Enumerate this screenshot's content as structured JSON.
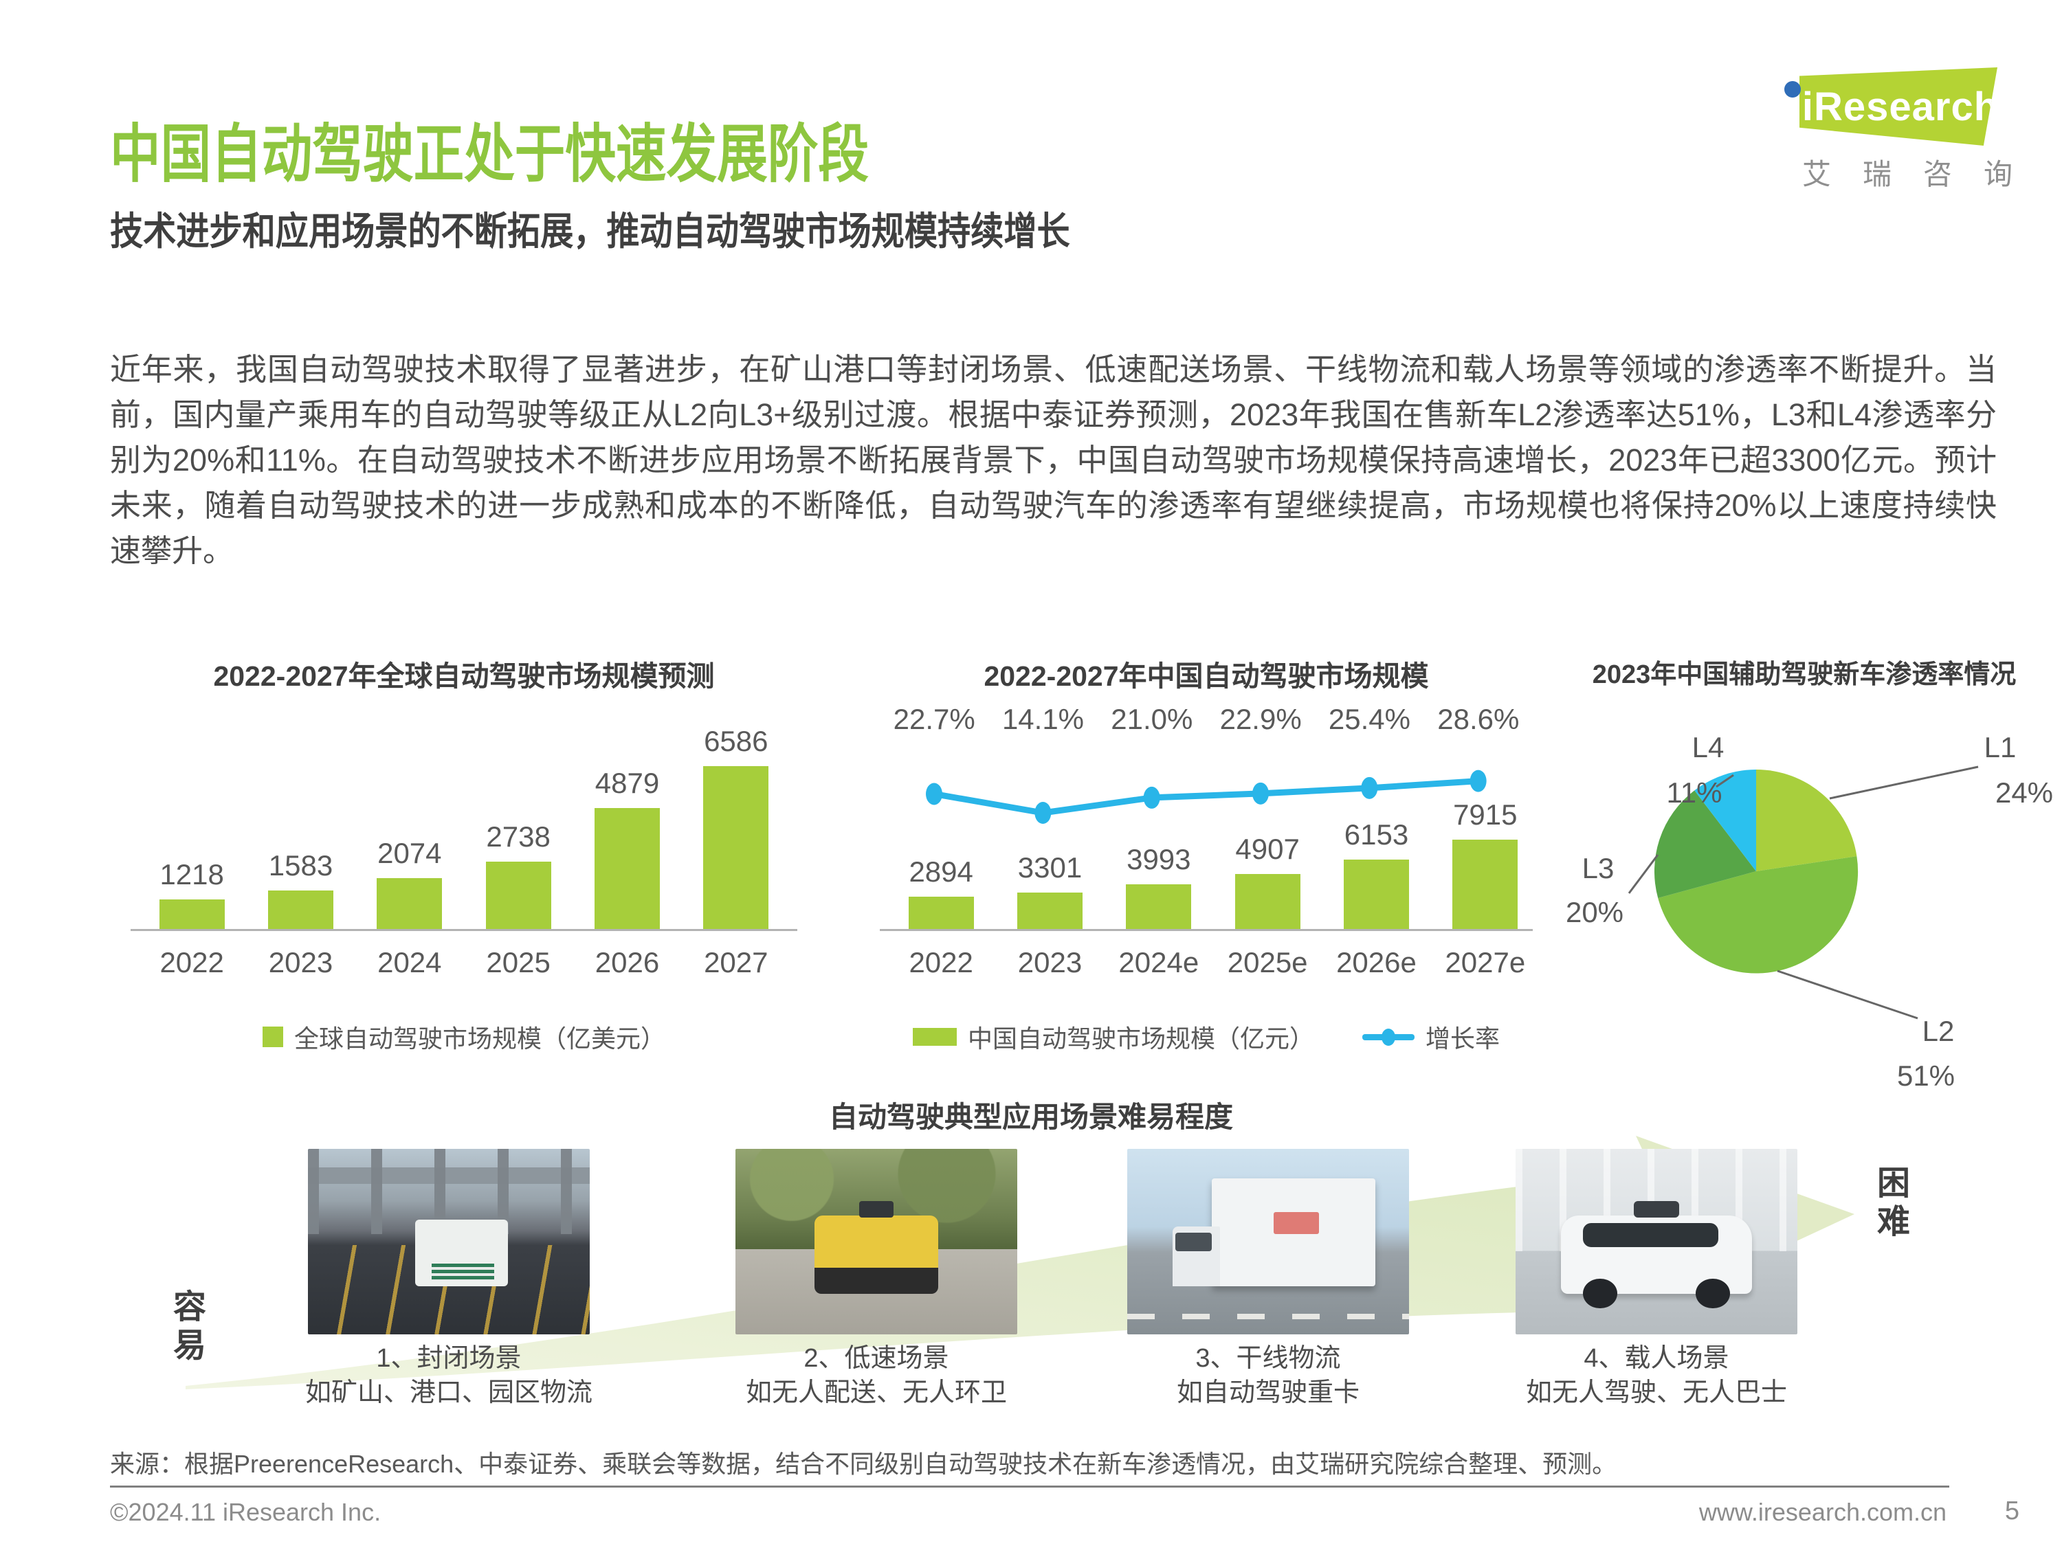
{
  "page": {
    "title": "中国自动驾驶正处于快速发展阶段",
    "subtitle": "技术进步和应用场景的不断拓展，推动自动驾驶市场规模持续增长",
    "body": "近年来，我国自动驾驶技术取得了显著进步，在矿山港口等封闭场景、低速配送场景、干线物流和载人场景等领域的渗透率不断提升。当前，国内量产乘用车的自动驾驶等级正从L2向L3+级别过渡。根据中泰证券预测，2023年我国在售新车L2渗透率达51%，L3和L4渗透率分别为20%和11%。在自动驾驶技术不断进步应用场景不断拓展背景下，中国自动驾驶市场规模保持高速增长，2023年已超3300亿元。预计未来，随着自动驾驶技术的进一步成熟和成本的不断降低，自动驾驶汽车的渗透率有望继续提高，市场规模也将保持20%以上速度持续快速攀升。",
    "source": "来源：根据PreerenceResearch、中泰证券、乘联会等数据，结合不同级别自动驾驶技术在新车渗透情况，由艾瑞研究院综合整理、预测。",
    "footer_left": "©2024.11 iResearch Inc.",
    "footer_url": "www.iresearch.com.cn",
    "page_number": "5"
  },
  "logo": {
    "brand": "iResearch",
    "brand_cn": "艾瑞咨询"
  },
  "colors": {
    "accent_green": "#8ec63f",
    "bar_green": "#a6ce3b",
    "line_cyan": "#29b5e8",
    "text_dark": "#3f3f3f",
    "text_gray": "#595959"
  },
  "chart_data": [
    {
      "type": "bar",
      "title": "2022-2027年全球自动驾驶市场规模预测",
      "categories": [
        "2022",
        "2023",
        "2024",
        "2025",
        "2026",
        "2027"
      ],
      "values": [
        1218,
        1583,
        2074,
        2738,
        4879,
        6586
      ],
      "ylim": [
        0,
        6586
      ],
      "bar_color": "#a6ce3b",
      "legend_label": "全球自动驾驶市场规模（亿美元）"
    },
    {
      "type": "bar+line",
      "title": "2022-2027年中国自动驾驶市场规模",
      "categories": [
        "2022",
        "2023",
        "2024e",
        "2025e",
        "2026e",
        "2027e"
      ],
      "series": [
        {
          "name": "中国自动驾驶市场规模（亿元）",
          "type": "bar",
          "color": "#a6ce3b",
          "values": [
            2894,
            3301,
            3993,
            4907,
            6153,
            7915
          ]
        },
        {
          "name": "增长率",
          "type": "line",
          "color": "#29b5e8",
          "values_pct": [
            22.7,
            14.1,
            21.0,
            22.9,
            25.4,
            28.6
          ],
          "labels": [
            "22.7%",
            "14.1%",
            "21.0%",
            "22.9%",
            "25.4%",
            "28.6%"
          ]
        }
      ],
      "ylim": [
        0,
        7915
      ]
    },
    {
      "type": "pie",
      "title": "2023年中国辅助驾驶新车渗透率情况",
      "slices": [
        {
          "label": "L1",
          "value_pct": 24,
          "value_label": "24%",
          "color": "#a8cf3d"
        },
        {
          "label": "L2",
          "value_pct": 51,
          "value_label": "51%",
          "color": "#7fc142"
        },
        {
          "label": "L3",
          "value_pct": 20,
          "value_label": "20%",
          "color": "#57a647"
        },
        {
          "label": "L4",
          "value_pct": 11,
          "value_label": "11%",
          "color": "#2bc1ee"
        }
      ]
    }
  ],
  "scenario": {
    "title": "自动驾驶典型应用场景难易程度",
    "easy_label": "容易",
    "hard_label": "困难",
    "items": [
      {
        "name": "1、封闭场景",
        "desc": "如矿山、港口、园区物流",
        "image": "port-agv-photo"
      },
      {
        "name": "2、低速场景",
        "desc": "如无人配送、无人环卫",
        "image": "delivery-robot-photo"
      },
      {
        "name": "3、干线物流",
        "desc": "如自动驾驶重卡",
        "image": "highway-truck-photo"
      },
      {
        "name": "4、载人场景",
        "desc": "如无人驾驶、无人巴士",
        "image": "robotaxi-photo"
      }
    ]
  }
}
